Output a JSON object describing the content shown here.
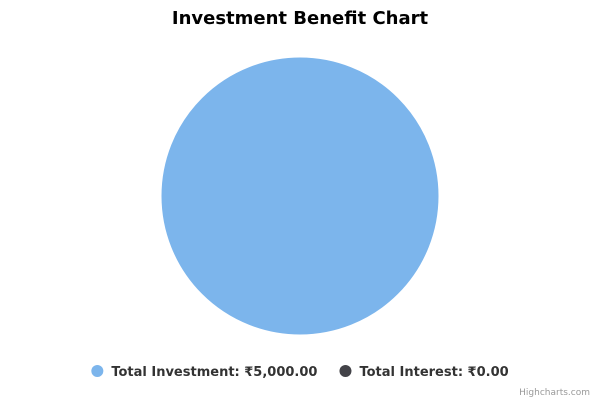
{
  "chart_data": {
    "type": "pie",
    "title": "Investment Benefit Chart",
    "currency_symbol": "₹",
    "slices": [
      {
        "name": "Total Investment",
        "value": 5000.0,
        "label": "Total Investment: ₹5,000.00",
        "color": "#7cb5ec"
      },
      {
        "name": "Total Interest",
        "value": 0.0,
        "label": "Total Interest: ₹0.00",
        "color": "#434348"
      }
    ],
    "legend_position": "bottom-center"
  },
  "credits": {
    "text": "Highcharts.com"
  }
}
